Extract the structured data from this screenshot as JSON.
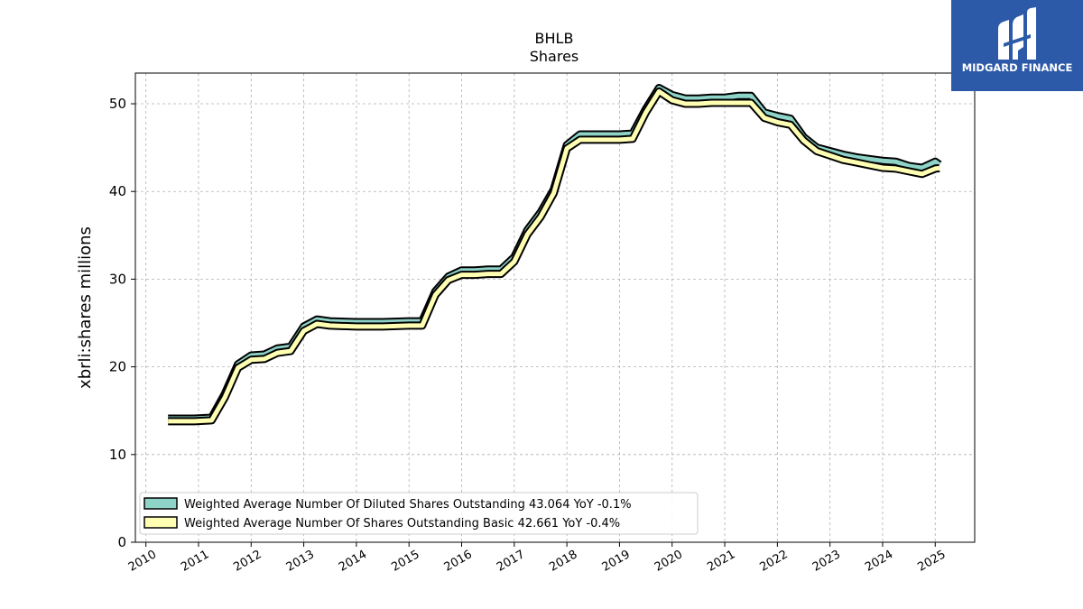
{
  "chart_data": {
    "type": "line",
    "title": "BHLB",
    "subtitle": "Shares",
    "ylabel": "xbrli:shares millions",
    "xlabel": "",
    "xlim": [
      2009.8,
      2025.75
    ],
    "ylim": [
      0,
      53.5
    ],
    "x_ticks": [
      2010,
      2011,
      2012,
      2013,
      2014,
      2015,
      2016,
      2017,
      2018,
      2019,
      2020,
      2021,
      2022,
      2023,
      2024,
      2025
    ],
    "x_tick_labels": [
      "2010",
      "2011",
      "2012",
      "2013",
      "2014",
      "2015",
      "2016",
      "2017",
      "2018",
      "2019",
      "2020",
      "2021",
      "2022",
      "2023",
      "2024",
      "2025"
    ],
    "y_ticks": [
      0,
      10,
      20,
      30,
      40,
      50
    ],
    "y_tick_labels": [
      "0",
      "10",
      "20",
      "30",
      "40",
      "50"
    ],
    "grid": true,
    "legend_position": "lower-left",
    "series": [
      {
        "name": "Weighted Average Number Of Diluted Shares Outstanding",
        "legend_label": "Weighted Average Number Of Diluted Shares Outstanding  43.064 YoY -0.1%",
        "color": "#8dd3c7",
        "points": [
          [
            2010.42,
            14.1
          ],
          [
            2010.67,
            14.1
          ],
          [
            2010.92,
            14.1
          ],
          [
            2011.25,
            14.2
          ],
          [
            2011.5,
            16.9
          ],
          [
            2011.75,
            20.3
          ],
          [
            2012.0,
            21.3
          ],
          [
            2012.25,
            21.4
          ],
          [
            2012.5,
            22.1
          ],
          [
            2012.75,
            22.3
          ],
          [
            2013.0,
            24.6
          ],
          [
            2013.25,
            25.4
          ],
          [
            2013.5,
            25.2
          ],
          [
            2014.0,
            25.1
          ],
          [
            2014.25,
            25.1
          ],
          [
            2014.5,
            25.1
          ],
          [
            2015.0,
            25.2
          ],
          [
            2015.25,
            25.2
          ],
          [
            2015.5,
            28.6
          ],
          [
            2015.75,
            30.3
          ],
          [
            2016.0,
            31.0
          ],
          [
            2016.25,
            31.0
          ],
          [
            2016.5,
            31.1
          ],
          [
            2016.75,
            31.1
          ],
          [
            2017.0,
            32.5
          ],
          [
            2017.25,
            35.6
          ],
          [
            2017.5,
            37.6
          ],
          [
            2017.75,
            40.2
          ],
          [
            2018.0,
            45.3
          ],
          [
            2018.25,
            46.5
          ],
          [
            2018.5,
            46.5
          ],
          [
            2018.75,
            46.5
          ],
          [
            2019.0,
            46.5
          ],
          [
            2019.25,
            46.6
          ],
          [
            2019.5,
            49.4
          ],
          [
            2019.75,
            51.8
          ],
          [
            2020.0,
            51.0
          ],
          [
            2020.25,
            50.6
          ],
          [
            2020.5,
            50.6
          ],
          [
            2020.75,
            50.7
          ],
          [
            2021.0,
            50.7
          ],
          [
            2021.25,
            50.9
          ],
          [
            2021.5,
            50.9
          ],
          [
            2021.75,
            49.0
          ],
          [
            2022.0,
            48.6
          ],
          [
            2022.25,
            48.3
          ],
          [
            2022.5,
            46.2
          ],
          [
            2022.75,
            45.0
          ],
          [
            2023.0,
            44.6
          ],
          [
            2023.25,
            44.2
          ],
          [
            2023.5,
            43.9
          ],
          [
            2023.75,
            43.7
          ],
          [
            2024.0,
            43.5
          ],
          [
            2024.25,
            43.4
          ],
          [
            2024.5,
            42.9
          ],
          [
            2024.75,
            42.7
          ],
          [
            2025.0,
            43.4
          ],
          [
            2025.08,
            43.064
          ]
        ]
      },
      {
        "name": "Weighted Average Number Of Shares Outstanding Basic",
        "legend_label": "Weighted Average Number Of Shares Outstanding Basic  42.661 YoY -0.4%",
        "color": "#ffffb3",
        "points": [
          [
            2010.42,
            13.8
          ],
          [
            2010.67,
            13.8
          ],
          [
            2010.92,
            13.8
          ],
          [
            2011.25,
            13.9
          ],
          [
            2011.5,
            16.5
          ],
          [
            2011.75,
            19.9
          ],
          [
            2012.0,
            20.8
          ],
          [
            2012.25,
            20.9
          ],
          [
            2012.5,
            21.6
          ],
          [
            2012.75,
            21.8
          ],
          [
            2013.0,
            24.1
          ],
          [
            2013.25,
            24.9
          ],
          [
            2013.5,
            24.7
          ],
          [
            2014.0,
            24.6
          ],
          [
            2014.25,
            24.6
          ],
          [
            2014.5,
            24.6
          ],
          [
            2015.0,
            24.7
          ],
          [
            2015.25,
            24.7
          ],
          [
            2015.5,
            28.2
          ],
          [
            2015.75,
            29.9
          ],
          [
            2016.0,
            30.5
          ],
          [
            2016.25,
            30.5
          ],
          [
            2016.5,
            30.6
          ],
          [
            2016.75,
            30.6
          ],
          [
            2017.0,
            32.0
          ],
          [
            2017.25,
            35.1
          ],
          [
            2017.5,
            37.1
          ],
          [
            2017.75,
            39.8
          ],
          [
            2018.0,
            44.9
          ],
          [
            2018.25,
            45.9
          ],
          [
            2018.5,
            45.9
          ],
          [
            2018.75,
            45.9
          ],
          [
            2019.0,
            45.9
          ],
          [
            2019.25,
            46.0
          ],
          [
            2019.5,
            49.0
          ],
          [
            2019.75,
            51.4
          ],
          [
            2020.0,
            50.4
          ],
          [
            2020.25,
            50.0
          ],
          [
            2020.5,
            50.0
          ],
          [
            2020.75,
            50.1
          ],
          [
            2021.0,
            50.1
          ],
          [
            2021.25,
            50.1
          ],
          [
            2021.5,
            50.1
          ],
          [
            2021.75,
            48.4
          ],
          [
            2022.0,
            47.9
          ],
          [
            2022.25,
            47.6
          ],
          [
            2022.5,
            45.8
          ],
          [
            2022.75,
            44.6
          ],
          [
            2023.0,
            44.1
          ],
          [
            2023.25,
            43.6
          ],
          [
            2023.5,
            43.3
          ],
          [
            2023.75,
            43.0
          ],
          [
            2024.0,
            42.7
          ],
          [
            2024.25,
            42.6
          ],
          [
            2024.5,
            42.3
          ],
          [
            2024.75,
            42.0
          ],
          [
            2025.0,
            42.6
          ],
          [
            2025.08,
            42.661
          ]
        ]
      }
    ]
  },
  "logo": {
    "text": "MIDGARD FINANCE",
    "background": "#2d5aa8",
    "text_color": "#ffffff"
  }
}
